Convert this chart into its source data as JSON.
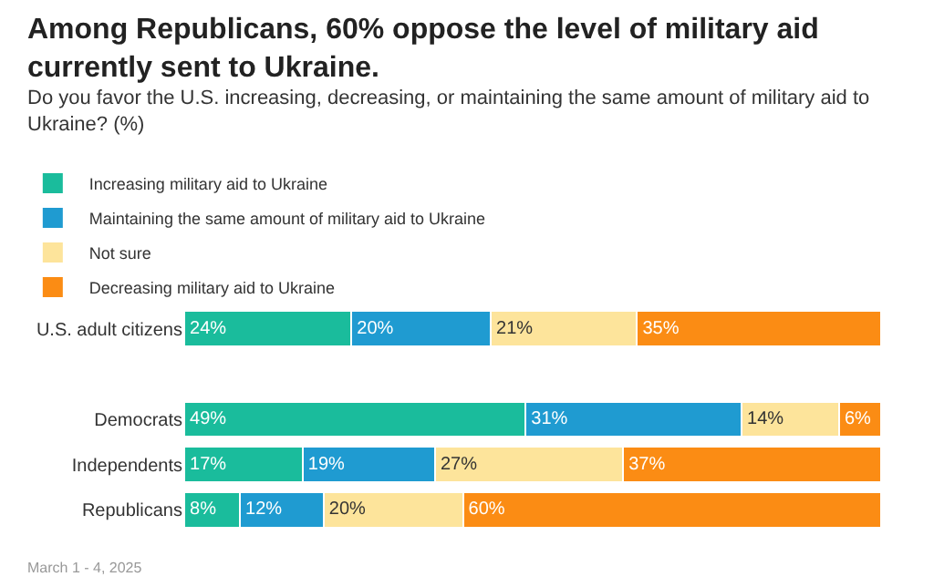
{
  "chart_data": {
    "type": "bar",
    "orientation": "horizontal",
    "stacked": true,
    "title": "Among Republicans, 60% oppose the level of military aid currently sent to Ukraine.",
    "subtitle": "Do you favor the U.S. increasing, decreasing, or maintaining the same amount of military aid to Ukraine? (%)",
    "categories": [
      "U.S. adult citizens",
      null,
      "Democrats",
      "Independents",
      "Republicans"
    ],
    "series": [
      {
        "name": "Increasing military aid to Ukraine",
        "color": "#1abc9c",
        "values": [
          24,
          null,
          49,
          17,
          8
        ],
        "value_labels": [
          "24%",
          null,
          "49%",
          "17%",
          "8%"
        ]
      },
      {
        "name": "Maintaining the same amount of military aid to Ukraine",
        "color": "#1f9bd1",
        "values": [
          20,
          null,
          31,
          19,
          12
        ],
        "value_labels": [
          "20%",
          null,
          "31%",
          "19%",
          "12%"
        ]
      },
      {
        "name": "Not sure",
        "color": "#fde49b",
        "values": [
          21,
          null,
          14,
          27,
          20
        ],
        "value_labels": [
          "21%",
          null,
          "14%",
          "27%",
          "20%"
        ]
      },
      {
        "name": "Decreasing military aid to Ukraine",
        "color": "#fb8c14",
        "values": [
          35,
          null,
          6,
          37,
          60
        ],
        "value_labels": [
          "35%",
          null,
          "6%",
          "37%",
          "60%"
        ]
      }
    ],
    "legend": "top left",
    "annotations": [
      "March 1 - 4, 2025"
    ]
  }
}
